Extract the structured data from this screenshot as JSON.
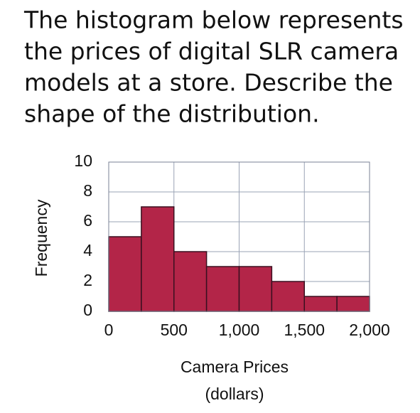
{
  "question": [
    "The histogram below represents",
    "the prices of digital SLR camera",
    "models at a store. Describe the",
    "shape of the distribution."
  ],
  "chart_data": {
    "type": "histogram",
    "bins": [
      0,
      250,
      500,
      750,
      1000,
      1250,
      1500,
      1750,
      2000
    ],
    "values": [
      5,
      7,
      4,
      3,
      3,
      2,
      1,
      1
    ],
    "color": "#b32548",
    "xlim": [
      0,
      2000
    ],
    "xticks": [
      0,
      500,
      {
        "value": 1000,
        "label": "1,000"
      },
      {
        "value": 1500,
        "label": "1,500"
      },
      {
        "value": 2000,
        "label": "2,000"
      }
    ],
    "ylim": [
      0,
      10
    ],
    "yticks": [
      0,
      2,
      4,
      6,
      8,
      10
    ],
    "xlabel": [
      "Camera Prices",
      "(dollars)"
    ],
    "ylabel": "Frequency",
    "grid": true
  }
}
